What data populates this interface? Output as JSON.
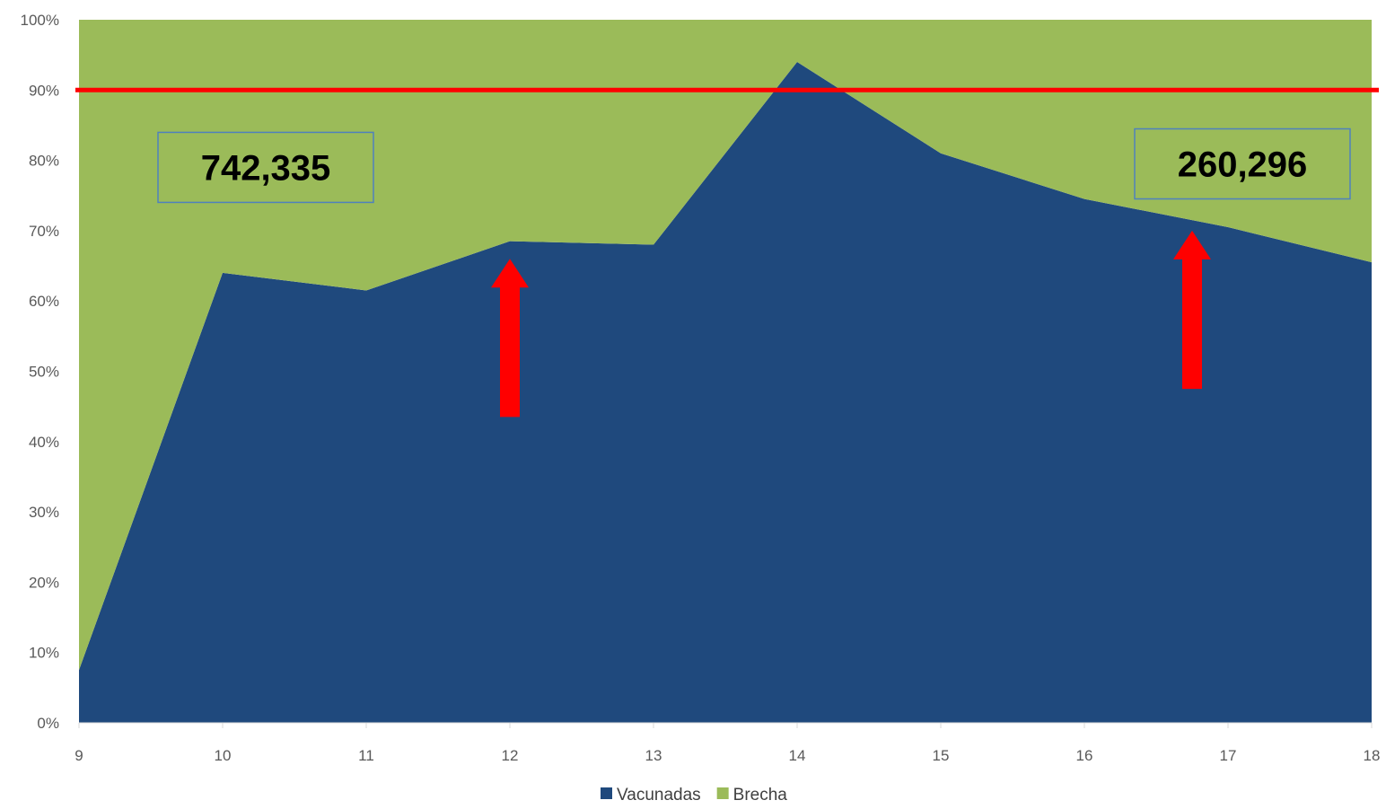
{
  "chart_data": {
    "type": "area",
    "stacked_percent": true,
    "x": [
      9,
      10,
      11,
      12,
      13,
      14,
      15,
      16,
      17,
      18
    ],
    "series": [
      {
        "name": "Vacunadas",
        "color": "#1F497D",
        "values": [
          7.5,
          64,
          61.5,
          68.5,
          68,
          94,
          81,
          74.5,
          70.5,
          65.5
        ]
      },
      {
        "name": "Brecha",
        "color": "#9BBB59",
        "values": [
          92.5,
          36,
          38.5,
          31.5,
          32,
          6,
          19,
          25.5,
          29.5,
          34.5
        ]
      }
    ],
    "ylim": [
      0,
      100
    ],
    "y_ticks": [
      "0%",
      "10%",
      "20%",
      "30%",
      "40%",
      "50%",
      "60%",
      "70%",
      "80%",
      "90%",
      "100%"
    ],
    "x_ticks": [
      "9",
      "10",
      "11",
      "12",
      "13",
      "14",
      "15",
      "16",
      "17",
      "18"
    ],
    "reference_line": {
      "y": 90,
      "color": "#FF0000"
    },
    "annotations": [
      {
        "text": "742,335",
        "x": 10.3,
        "y": 79
      },
      {
        "text": "260,296",
        "x": 17.1,
        "y": 79.5
      }
    ],
    "arrows": [
      {
        "x": 12,
        "y_from": 43.5,
        "y_to": 66,
        "color": "#FF0000"
      },
      {
        "x": 16.75,
        "y_from": 47.5,
        "y_to": 70,
        "color": "#FF0000"
      }
    ],
    "legend": {
      "placement": "bottom-center"
    },
    "grid": false
  }
}
